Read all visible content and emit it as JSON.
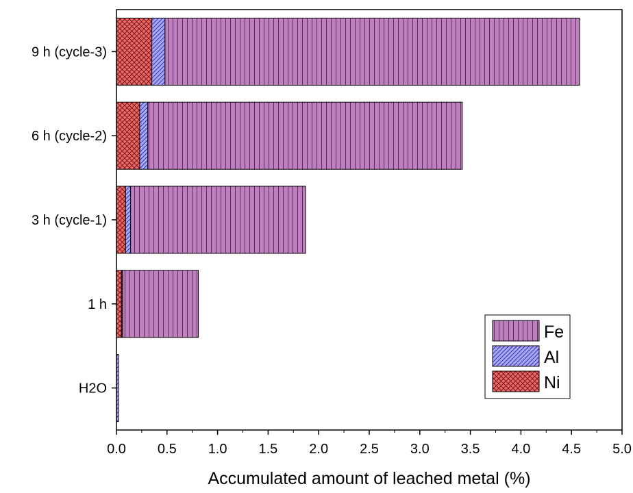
{
  "chart_data": {
    "type": "bar",
    "orientation": "horizontal",
    "stacked": true,
    "categories": [
      "H2O",
      "1 h",
      "3 h (cycle-1)",
      "6 h (cycle-2)",
      "9 h (cycle-3)"
    ],
    "series": [
      {
        "name": "Ni",
        "values": [
          0.0,
          0.05,
          0.09,
          0.23,
          0.35
        ],
        "color": "#f06666",
        "pattern": "crosshatch"
      },
      {
        "name": "Al",
        "values": [
          0.02,
          0.01,
          0.05,
          0.08,
          0.13
        ],
        "color": "#a6a6ff",
        "pattern": "diagonal"
      },
      {
        "name": "Fe",
        "values": [
          0.0,
          0.75,
          1.73,
          3.11,
          4.1
        ],
        "color": "#c080c0",
        "pattern": "vertical"
      }
    ],
    "xlabel": "Accumulated amount of leached metal  (%)",
    "xlim": [
      0,
      5
    ],
    "xticks": [
      "0.0",
      "0.5",
      "1.0",
      "1.5",
      "2.0",
      "2.5",
      "3.0",
      "3.5",
      "4.0",
      "4.5",
      "5.0"
    ],
    "legend": {
      "placement": "bottom-right",
      "order": [
        "Fe",
        "Al",
        "Ni"
      ]
    },
    "grid": false
  }
}
